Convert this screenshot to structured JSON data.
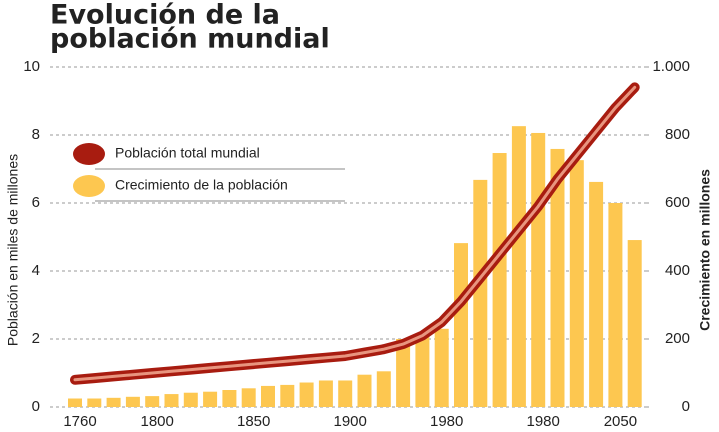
{
  "chart_data": {
    "type": "bar_line",
    "title": [
      "Evolución de la",
      "población mundial"
    ],
    "ylabel": "Población en miles de millones",
    "y2label": "Crecimiento en millones",
    "categories": [
      "1760",
      null,
      null,
      null,
      "1800",
      null,
      null,
      null,
      null,
      "1850",
      null,
      null,
      null,
      null,
      "1900",
      null,
      null,
      null,
      null,
      "1980",
      null,
      null,
      null,
      null,
      "1980",
      null,
      null,
      null,
      "2050",
      null
    ],
    "series": [
      {
        "name": "Población total mundial",
        "color": "#a81c10",
        "type": "line",
        "axis": "y",
        "values": [
          0.8,
          0.85,
          0.9,
          0.95,
          1.0,
          1.05,
          1.1,
          1.15,
          1.2,
          1.25,
          1.3,
          1.35,
          1.4,
          1.45,
          1.5,
          1.6,
          1.7,
          1.85,
          2.1,
          2.5,
          3.1,
          3.8,
          4.5,
          5.2,
          5.9,
          6.7,
          7.4,
          8.1,
          8.8,
          9.4
        ]
      },
      {
        "name": "Crecimiento de la población",
        "color": "#fdc750",
        "type": "bar",
        "axis": "y2",
        "values": [
          25,
          25,
          27,
          30,
          32,
          38,
          42,
          45,
          50,
          55,
          62,
          65,
          72,
          78,
          78,
          95,
          105,
          200,
          210,
          230,
          482,
          668,
          747,
          826,
          806,
          759,
          726,
          662,
          600,
          491
        ]
      }
    ],
    "ylim": [
      0,
      10
    ],
    "yticks": [
      0,
      2,
      4,
      6,
      8,
      10
    ],
    "y2lim": [
      0,
      1000
    ],
    "y2ticks": [
      0,
      200,
      400,
      600,
      800,
      {
        "value": 1000,
        "label": "1.000"
      }
    ],
    "grid": true
  }
}
